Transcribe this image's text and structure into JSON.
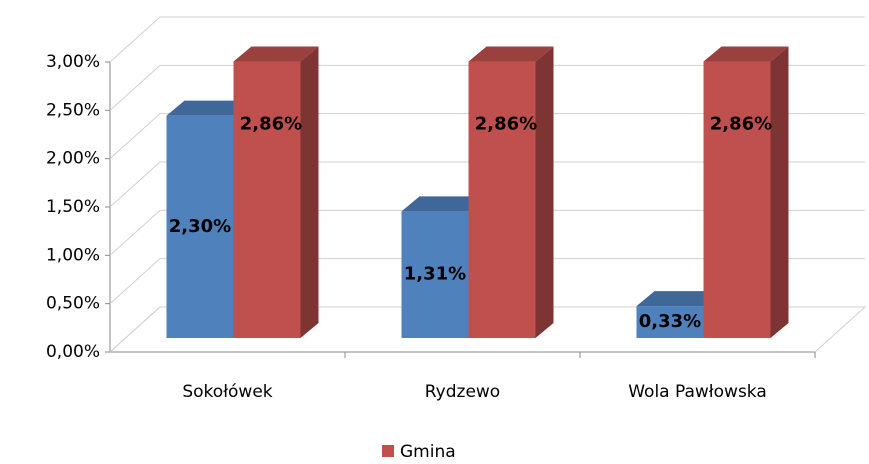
{
  "chart_data": {
    "type": "bar3d",
    "categories": [
      "Sokołówek",
      "Rydzewo",
      "Wola Pawłowska"
    ],
    "series": [
      {
        "color": "#4f81bd",
        "values": [
          2.3,
          1.31,
          0.33
        ],
        "value_labels": [
          "2,30%",
          "1,31%",
          "0,33%"
        ]
      },
      {
        "name": "Gmina",
        "color": "#c0504d",
        "values": [
          2.86,
          2.86,
          2.86
        ],
        "value_labels": [
          "2,86%",
          "2,86%",
          "2,86%"
        ]
      }
    ],
    "ylim": [
      0,
      3
    ],
    "yticks": [
      {
        "value": 0,
        "label": "0,00%"
      },
      {
        "value": 0.5,
        "label": "0,50%"
      },
      {
        "value": 1,
        "label": "1,00%"
      },
      {
        "value": 1.5,
        "label": "1,50%"
      },
      {
        "value": 2,
        "label": "2,00%"
      },
      {
        "value": 2.5,
        "label": "2,50%"
      },
      {
        "value": 3,
        "label": "3,00%"
      }
    ],
    "grid": true,
    "legend": "bottom"
  }
}
